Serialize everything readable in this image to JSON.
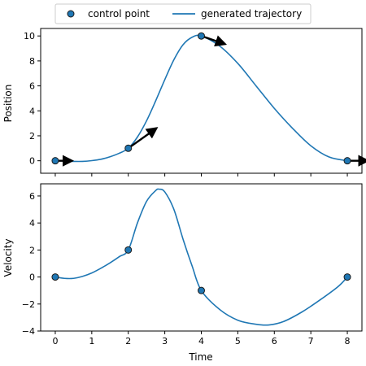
{
  "legend": {
    "placement": "top-center",
    "entries": [
      {
        "label": "control point",
        "marker": "circle"
      },
      {
        "label": "generated trajectory",
        "marker": "line"
      }
    ]
  },
  "colors": {
    "line": "#1f77b4",
    "marker_fill": "#1f77b4",
    "marker_edge": "#1a1a1a",
    "arrow": "#000000"
  },
  "chart_data": [
    {
      "type": "line",
      "xlabel": "",
      "ylabel": "Position",
      "xlim": [
        -0.4,
        8.4
      ],
      "ylim": [
        -1.0,
        10.6
      ],
      "xticks": [
        0,
        1,
        2,
        3,
        4,
        5,
        6,
        7,
        8
      ],
      "show_xtick_labels": false,
      "yticks": [
        0,
        2,
        4,
        6,
        8,
        10
      ],
      "grid": false,
      "series": [
        {
          "name": "generated trajectory",
          "x": [
            0,
            0.25,
            0.5,
            0.75,
            1.0,
            1.25,
            1.5,
            1.75,
            2.0,
            2.25,
            2.5,
            2.75,
            3.0,
            3.25,
            3.5,
            3.75,
            4.0,
            4.5,
            5.0,
            5.5,
            6.0,
            6.5,
            7.0,
            7.5,
            8.0
          ],
          "y": [
            0,
            -0.02,
            -0.05,
            -0.05,
            0.01,
            0.12,
            0.32,
            0.6,
            1.0,
            1.9,
            3.2,
            4.8,
            6.5,
            8.1,
            9.3,
            9.9,
            10.0,
            9.2,
            7.8,
            6.0,
            4.2,
            2.6,
            1.2,
            0.3,
            0.0
          ]
        }
      ],
      "control_points": {
        "name": "control point",
        "x": [
          0,
          2,
          4,
          8
        ],
        "y": [
          0,
          1,
          10,
          0
        ],
        "arrows": [
          {
            "dx": 0.25,
            "dy": 0.0
          },
          {
            "dx": 0.6,
            "dy": 1.25
          },
          {
            "dx": 0.45,
            "dy": -0.45
          },
          {
            "dx": 0.35,
            "dy": 0.0
          }
        ]
      }
    },
    {
      "type": "line",
      "xlabel": "Time",
      "ylabel": "Velocity",
      "xlim": [
        -0.4,
        8.4
      ],
      "ylim": [
        -4.0,
        6.9
      ],
      "xticks": [
        0,
        1,
        2,
        3,
        4,
        5,
        6,
        7,
        8
      ],
      "show_xtick_labels": true,
      "yticks": [
        -4,
        -2,
        0,
        2,
        4,
        6
      ],
      "grid": false,
      "series": [
        {
          "name": "generated trajectory",
          "x": [
            0,
            0.25,
            0.5,
            0.75,
            1.0,
            1.25,
            1.5,
            1.75,
            2.0,
            2.25,
            2.5,
            2.75,
            2.85,
            3.0,
            3.25,
            3.5,
            3.75,
            4.0,
            4.5,
            5.0,
            5.5,
            5.85,
            6.25,
            6.75,
            7.25,
            7.75,
            8.0
          ],
          "y": [
            0,
            -0.1,
            -0.1,
            0.05,
            0.3,
            0.65,
            1.05,
            1.5,
            2.0,
            4.0,
            5.6,
            6.4,
            6.5,
            6.3,
            5.0,
            2.8,
            0.8,
            -1.0,
            -2.4,
            -3.2,
            -3.5,
            -3.55,
            -3.3,
            -2.6,
            -1.7,
            -0.7,
            0.0
          ]
        }
      ],
      "control_points": {
        "name": "control point",
        "x": [
          0,
          2,
          4,
          8
        ],
        "y": [
          0,
          2,
          -1,
          0
        ]
      }
    }
  ]
}
